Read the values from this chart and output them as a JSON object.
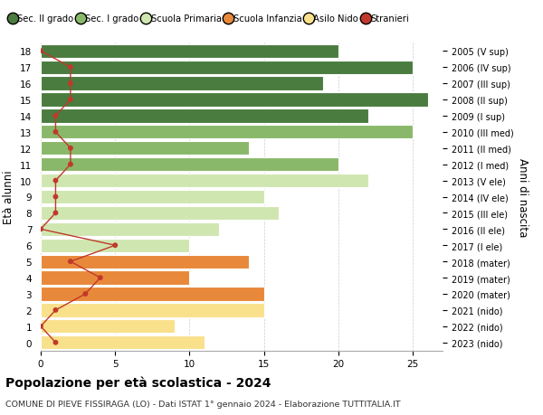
{
  "ages": [
    0,
    1,
    2,
    3,
    4,
    5,
    6,
    7,
    8,
    9,
    10,
    11,
    12,
    13,
    14,
    15,
    16,
    17,
    18
  ],
  "bar_values": [
    11,
    9,
    15,
    15,
    10,
    14,
    10,
    12,
    16,
    15,
    22,
    20,
    14,
    25,
    22,
    26,
    19,
    25,
    20
  ],
  "stranieri": [
    1,
    0,
    1,
    3,
    4,
    2,
    5,
    0,
    1,
    1,
    1,
    2,
    2,
    1,
    1,
    2,
    2,
    2,
    0
  ],
  "bar_colors": [
    "#f9e08a",
    "#f9e08a",
    "#f9e08a",
    "#e8883a",
    "#e8883a",
    "#e8883a",
    "#d0e6b0",
    "#d0e6b0",
    "#d0e6b0",
    "#d0e6b0",
    "#d0e6b0",
    "#8ab86a",
    "#8ab86a",
    "#8ab86a",
    "#4a7c3f",
    "#4a7c3f",
    "#4a7c3f",
    "#4a7c3f",
    "#4a7c3f"
  ],
  "right_labels": [
    "2023 (nido)",
    "2022 (nido)",
    "2021 (nido)",
    "2020 (mater)",
    "2019 (mater)",
    "2018 (mater)",
    "2017 (I ele)",
    "2016 (II ele)",
    "2015 (III ele)",
    "2014 (IV ele)",
    "2013 (V ele)",
    "2012 (I med)",
    "2011 (II med)",
    "2010 (III med)",
    "2009 (I sup)",
    "2008 (II sup)",
    "2007 (III sup)",
    "2006 (IV sup)",
    "2005 (V sup)"
  ],
  "legend_labels": [
    "Sec. II grado",
    "Sec. I grado",
    "Scuola Primaria",
    "Scuola Infanzia",
    "Asilo Nido",
    "Stranieri"
  ],
  "legend_colors": [
    "#4a7c3f",
    "#8ab86a",
    "#d0e6b0",
    "#e8883a",
    "#f9e08a",
    "#c0392b"
  ],
  "ylabel": "Età alunni",
  "right_ylabel": "Anni di nascita",
  "title": "Popolazione per età scolastica - 2024",
  "subtitle": "COMUNE DI PIEVE FISSIRAGA (LO) - Dati ISTAT 1° gennaio 2024 - Elaborazione TUTTITALIA.IT",
  "xlim": [
    0,
    27
  ],
  "ylim": [
    -0.5,
    18.5
  ],
  "xticks": [
    0,
    5,
    10,
    15,
    20,
    25
  ],
  "stranieri_color": "#c0392b",
  "bar_height": 0.85,
  "background_color": "#ffffff",
  "grid_color": "#cccccc"
}
